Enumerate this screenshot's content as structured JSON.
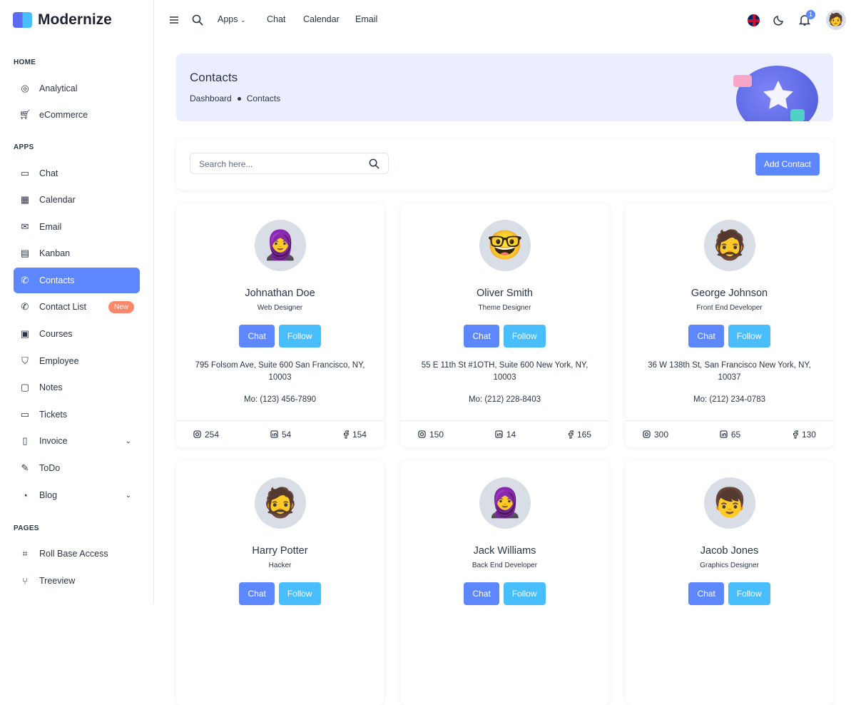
{
  "brand": "Modernize",
  "sidebar": {
    "sections": [
      "HOME",
      "APPS",
      "PAGES"
    ],
    "items": [
      {
        "label": "Analytical",
        "icon": "aperture-icon"
      },
      {
        "label": "eCommerce",
        "icon": "cart-icon"
      },
      {
        "label": "Chat",
        "icon": "message-icon"
      },
      {
        "label": "Calendar",
        "icon": "calendar-icon"
      },
      {
        "label": "Email",
        "icon": "mail-icon"
      },
      {
        "label": "Kanban",
        "icon": "kanban-icon"
      },
      {
        "label": "Contacts",
        "icon": "phone-icon",
        "active": true
      },
      {
        "label": "Contact List",
        "icon": "phone-icon",
        "badge": "New"
      },
      {
        "label": "Courses",
        "icon": "courses-icon"
      },
      {
        "label": "Employee",
        "icon": "shield-icon"
      },
      {
        "label": "Notes",
        "icon": "note-icon"
      },
      {
        "label": "Tickets",
        "icon": "ticket-icon"
      },
      {
        "label": "Invoice",
        "icon": "file-icon",
        "expandable": true
      },
      {
        "label": "ToDo",
        "icon": "edit-icon"
      },
      {
        "label": "Blog",
        "icon": "chart-donut-icon",
        "expandable": true
      },
      {
        "label": "Roll Base Access",
        "icon": "access-icon"
      },
      {
        "label": "Treeview",
        "icon": "tree-icon"
      }
    ]
  },
  "topbar": {
    "apps": "Apps",
    "chat": "Chat",
    "calendar": "Calendar",
    "email": "Email",
    "notifications": "1"
  },
  "banner": {
    "title": "Contacts",
    "crumb1": "Dashboard",
    "crumb2": "Contacts"
  },
  "search": {
    "placeholder": "Search here..."
  },
  "add_contact": "Add Contact",
  "buttons": {
    "chat": "Chat",
    "follow": "Follow"
  },
  "contacts": [
    {
      "name": "Johnathan Doe",
      "role": "Web Designer",
      "address": "795 Folsom Ave, Suite 600 San Francisco, NY, 10003",
      "phone": "Mo: (123) 456-7890",
      "instagram": "254",
      "linkedin": "54",
      "facebook": "154"
    },
    {
      "name": "Oliver Smith",
      "role": "Theme Designer",
      "address": "55 E 11th St #1OTH, Suite 600 New York, NY, 10003",
      "phone": "Mo: (212) 228-8403",
      "instagram": "150",
      "linkedin": "14",
      "facebook": "165"
    },
    {
      "name": "George Johnson",
      "role": "Front End Developer",
      "address": "36 W 138th St, San Francisco New York, NY, 10037",
      "phone": "Mo: (212) 234-0783",
      "instagram": "300",
      "linkedin": "65",
      "facebook": "130"
    },
    {
      "name": "Harry Potter",
      "role": "Hacker"
    },
    {
      "name": "Jack Williams",
      "role": "Back End Developer"
    },
    {
      "name": "Jacob Jones",
      "role": "Graphics Designer"
    }
  ]
}
